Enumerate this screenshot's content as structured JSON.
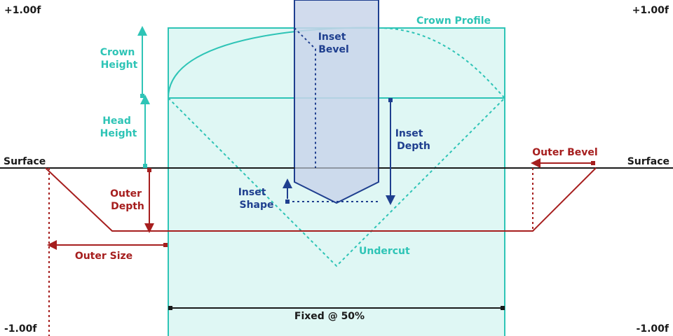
{
  "labels": {
    "top_left": "+1.00f",
    "top_right": "+1.00f",
    "bottom_left": "-1.00f",
    "bottom_right": "-1.00f",
    "surface_left": "Surface",
    "surface_right": "Surface",
    "crown_profile": "Crown Profile",
    "crown_height": [
      "Crown",
      "Height"
    ],
    "head_height": [
      "Head",
      "Height"
    ],
    "inset_bevel": [
      "Inset",
      "Bevel"
    ],
    "inset_depth": [
      "Inset",
      "Depth"
    ],
    "inset_shape": [
      "Inset",
      "Shape"
    ],
    "outer_bevel": "Outer Bevel",
    "outer_depth": [
      "Outer",
      "Depth"
    ],
    "outer_size": "Outer Size",
    "undercut": "Undercut",
    "fixed": "Fixed @ 50%"
  },
  "colors": {
    "teal": "#2ec4b6",
    "teal_fill": "#dff7f4",
    "red": "#a61e1e",
    "blue": "#1f3f8f",
    "blue_fill": "#c9d5ea",
    "black": "#1a1a1a"
  }
}
